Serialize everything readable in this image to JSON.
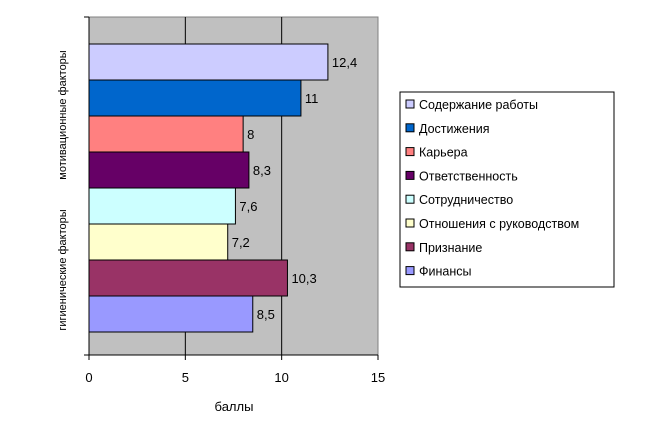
{
  "chart_data": {
    "type": "bar",
    "orientation": "horizontal",
    "title": "",
    "xlabel": "баллы",
    "ylabel_groups": [
      "мотивационные факторы",
      "гигиенические факторы"
    ],
    "xlim": [
      0,
      15
    ],
    "xticks": [
      0,
      5,
      10,
      15
    ],
    "grid": true,
    "legend_position": "right",
    "series": [
      {
        "name": "Содержание работы",
        "value": 12.4,
        "label": "12,4",
        "color": "#CCCCFF"
      },
      {
        "name": "Достижения",
        "value": 11,
        "label": "11",
        "color": "#0066CC"
      },
      {
        "name": "Карьера",
        "value": 8,
        "label": "8",
        "color": "#FF8080"
      },
      {
        "name": "Ответственность",
        "value": 8.3,
        "label": "8,3",
        "color": "#660066"
      },
      {
        "name": "Сотрудничество",
        "value": 7.6,
        "label": "7,6",
        "color": "#CCFFFF"
      },
      {
        "name": "Отношения с руководством",
        "value": 7.2,
        "label": "7,2",
        "color": "#FFFFCC"
      },
      {
        "name": "Признание",
        "value": 10.3,
        "label": "10,3",
        "color": "#993366"
      },
      {
        "name": "Финансы",
        "value": 8.5,
        "label": "8,5",
        "color": "#9999FF"
      }
    ],
    "plot_background": "#C0C0C0"
  }
}
